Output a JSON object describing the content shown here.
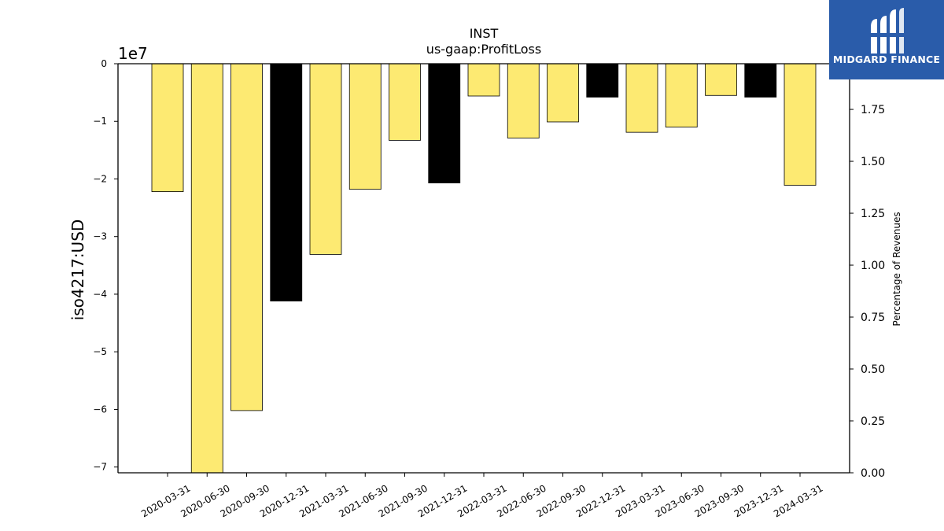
{
  "chart_data": {
    "type": "bar",
    "title": "INST",
    "subtitle": "us-gaap:ProfitLoss",
    "ylabel": "iso4217:USD",
    "y_offset_label": "1e7",
    "y2label": "Percentage of Revenues",
    "ylim": [
      -71000000,
      0
    ],
    "y_ticks": [
      0,
      -1,
      -2,
      -3,
      -4,
      -5,
      -6,
      -7
    ],
    "y_tick_labels": [
      "0",
      "−1",
      "−2",
      "−3",
      "−4",
      "−5",
      "−6",
      "−7"
    ],
    "y2lim": [
      0,
      1.97
    ],
    "y2_ticks": [
      0.0,
      0.25,
      0.5,
      0.75,
      1.0,
      1.25,
      1.5,
      1.75
    ],
    "y2_tick_labels": [
      "0.00",
      "0.25",
      "0.50",
      "0.75",
      "1.00",
      "1.25",
      "1.50",
      "1.75"
    ],
    "grid": false,
    "categories": [
      "2020-03-31",
      "2020-06-30",
      "2020-09-30",
      "2020-12-31",
      "2021-03-31",
      "2021-06-30",
      "2021-09-30",
      "2021-12-31",
      "2022-03-31",
      "2022-06-30",
      "2022-09-30",
      "2022-12-31",
      "2023-03-31",
      "2023-06-30",
      "2023-09-30",
      "2023-12-31",
      "2024-03-31"
    ],
    "values": [
      -22200000,
      -71000000,
      -60200000,
      -41200000,
      -33100000,
      -21800000,
      -13300000,
      -20700000,
      -5600000,
      -12900000,
      -10100000,
      -5800000,
      -11900000,
      -11000000,
      -5500000,
      -5800000,
      -21100000
    ],
    "bar_colors": [
      "#fdea72",
      "#fdea72",
      "#fdea72",
      "#000000",
      "#fdea72",
      "#fdea72",
      "#fdea72",
      "#000000",
      "#fdea72",
      "#fdea72",
      "#fdea72",
      "#000000",
      "#fdea72",
      "#fdea72",
      "#fdea72",
      "#000000",
      "#fdea72"
    ]
  },
  "logo": {
    "text": "MIDGARD FINANCE",
    "background": "#2a5caa"
  }
}
